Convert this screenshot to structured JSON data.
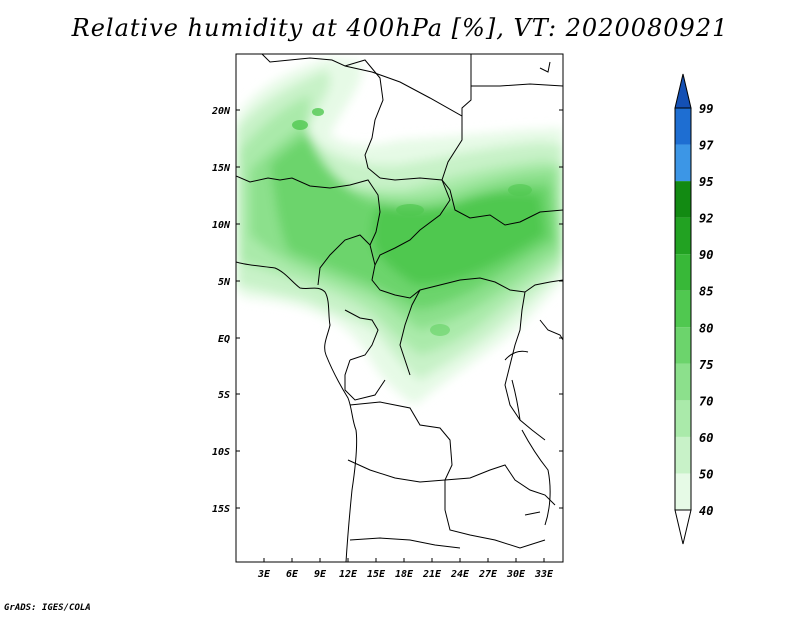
{
  "title": "Relative humidity at 400hPa [%], VT: 2020080921",
  "credit": "GrADS: IGES/COLA",
  "map": {
    "lat_labels": [
      "20N",
      "15N",
      "10N",
      "5N",
      "EQ",
      "5S",
      "10S",
      "15S"
    ],
    "lon_labels": [
      "3E",
      "6E",
      "9E",
      "12E",
      "15E",
      "18E",
      "21E",
      "24E",
      "27E",
      "30E",
      "33E"
    ]
  },
  "legend": {
    "levels": [
      "40",
      "50",
      "60",
      "70",
      "75",
      "80",
      "85",
      "90",
      "92",
      "95",
      "97",
      "99"
    ],
    "colors": [
      "#ffffff",
      "#e6fae6",
      "#c8f2c8",
      "#aaeaaa",
      "#8ce08c",
      "#6cd46c",
      "#50c850",
      "#38b838",
      "#22a222",
      "#128a12",
      "#3c96e6",
      "#1e6ed2",
      "#1450b4"
    ]
  }
}
